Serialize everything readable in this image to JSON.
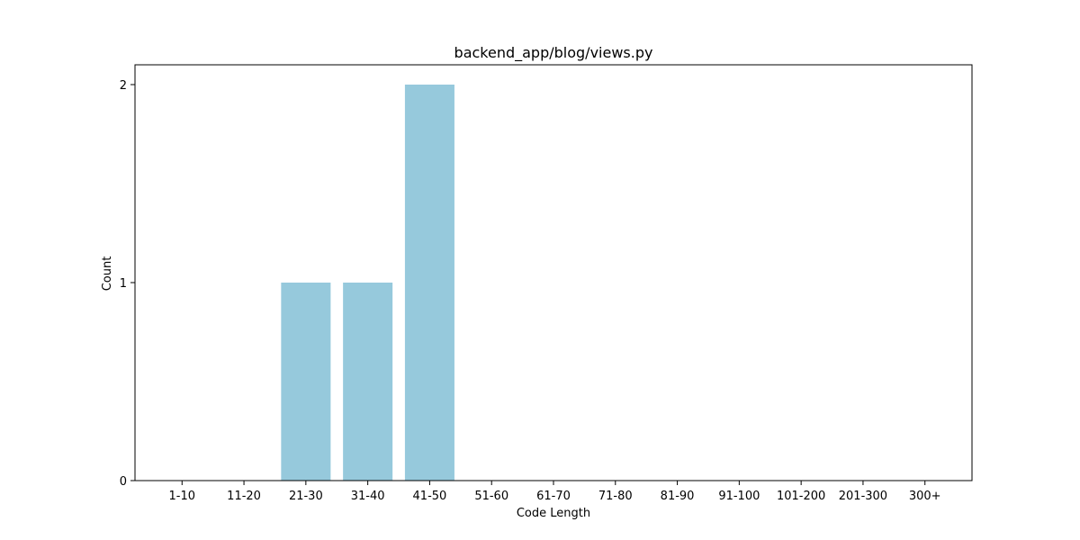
{
  "chart_data": {
    "type": "bar",
    "title": "backend_app/blog/views.py",
    "xlabel": "Code Length",
    "ylabel": "Count",
    "categories": [
      "1-10",
      "11-20",
      "21-30",
      "31-40",
      "41-50",
      "51-60",
      "61-70",
      "71-80",
      "81-90",
      "91-100",
      "101-200",
      "201-300",
      "300+"
    ],
    "values": [
      0,
      0,
      1,
      1,
      2,
      0,
      0,
      0,
      0,
      0,
      0,
      0,
      0
    ],
    "yticks": [
      0,
      1,
      2
    ],
    "ylim": [
      0,
      2.1
    ],
    "bar_color": "#96c9dc",
    "grid": false,
    "legend": "none"
  }
}
